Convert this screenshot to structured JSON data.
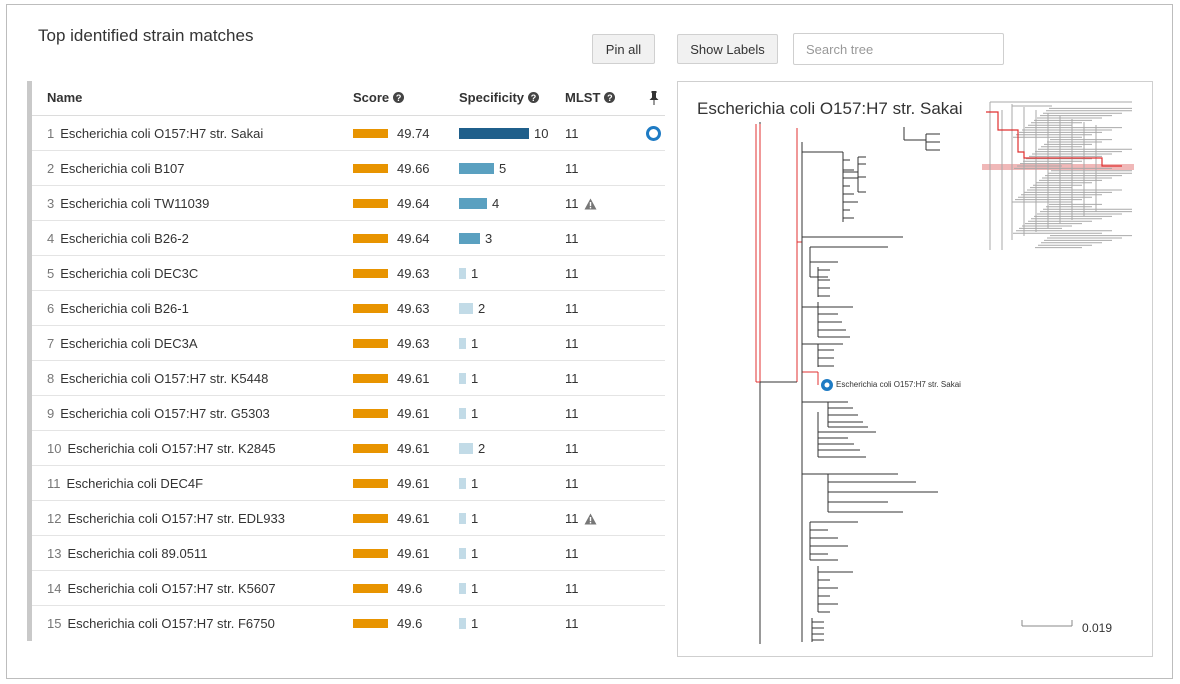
{
  "header": {
    "title": "Top identified strain matches",
    "pin_all_label": "Pin all",
    "show_labels_label": "Show Labels",
    "search_placeholder": "Search tree"
  },
  "table": {
    "columns": {
      "name": "Name",
      "score": "Score",
      "specificity": "Specificity",
      "mlst": "MLST"
    },
    "rows": [
      {
        "index": "1",
        "name": "Escherichia coli O157:H7 str. Sakai",
        "score": "49.74",
        "specificity": "10",
        "mlst": "11",
        "warning": false,
        "pinned": true
      },
      {
        "index": "2",
        "name": "Escherichia coli B107",
        "score": "49.66",
        "specificity": "5",
        "mlst": "11",
        "warning": false,
        "pinned": false
      },
      {
        "index": "3",
        "name": "Escherichia coli TW11039",
        "score": "49.64",
        "specificity": "4",
        "mlst": "11",
        "warning": true,
        "pinned": false
      },
      {
        "index": "4",
        "name": "Escherichia coli B26-2",
        "score": "49.64",
        "specificity": "3",
        "mlst": "11",
        "warning": false,
        "pinned": false
      },
      {
        "index": "5",
        "name": "Escherichia coli DEC3C",
        "score": "49.63",
        "specificity": "1",
        "mlst": "11",
        "warning": false,
        "pinned": false
      },
      {
        "index": "6",
        "name": "Escherichia coli B26-1",
        "score": "49.63",
        "specificity": "2",
        "mlst": "11",
        "warning": false,
        "pinned": false
      },
      {
        "index": "7",
        "name": "Escherichia coli DEC3A",
        "score": "49.63",
        "specificity": "1",
        "mlst": "11",
        "warning": false,
        "pinned": false
      },
      {
        "index": "8",
        "name": "Escherichia coli O157:H7 str. K5448",
        "score": "49.61",
        "specificity": "1",
        "mlst": "11",
        "warning": false,
        "pinned": false
      },
      {
        "index": "9",
        "name": "Escherichia coli O157:H7 str. G5303",
        "score": "49.61",
        "specificity": "1",
        "mlst": "11",
        "warning": false,
        "pinned": false
      },
      {
        "index": "10",
        "name": "Escherichia coli O157:H7 str. K2845",
        "score": "49.61",
        "specificity": "2",
        "mlst": "11",
        "warning": false,
        "pinned": false
      },
      {
        "index": "11",
        "name": "Escherichia coli DEC4F",
        "score": "49.61",
        "specificity": "1",
        "mlst": "11",
        "warning": false,
        "pinned": false
      },
      {
        "index": "12",
        "name": "Escherichia coli O157:H7 str. EDL933",
        "score": "49.61",
        "specificity": "1",
        "mlst": "11",
        "warning": true,
        "pinned": false
      },
      {
        "index": "13",
        "name": "Escherichia coli 89.0511",
        "score": "49.61",
        "specificity": "1",
        "mlst": "11",
        "warning": false,
        "pinned": false
      },
      {
        "index": "14",
        "name": "Escherichia coli O157:H7 str. K5607",
        "score": "49.6",
        "specificity": "1",
        "mlst": "11",
        "warning": false,
        "pinned": false
      },
      {
        "index": "15",
        "name": "Escherichia coli O157:H7 str. F6750",
        "score": "49.6",
        "specificity": "1",
        "mlst": "11",
        "warning": false,
        "pinned": false
      }
    ]
  },
  "tree": {
    "title": "Escherichia coli O157:H7 str. Sakai",
    "selected_leaf_label": "Escherichia coli O157:H7 str. Sakai",
    "scale_label": "0.019"
  },
  "colors": {
    "score_bar": "#e89400",
    "spec_dark": "#1f5f8b",
    "spec_mid": "#5aa0c0",
    "spec_light": "#c2dbe7",
    "highlight_path": "#e03030",
    "pin_ring": "#1e7bc4"
  },
  "icons": {
    "help": "question-circle-icon",
    "pin": "thumbtack-icon",
    "warning": "warning-triangle-icon",
    "pinned_marker": "pinned-ring-icon"
  }
}
